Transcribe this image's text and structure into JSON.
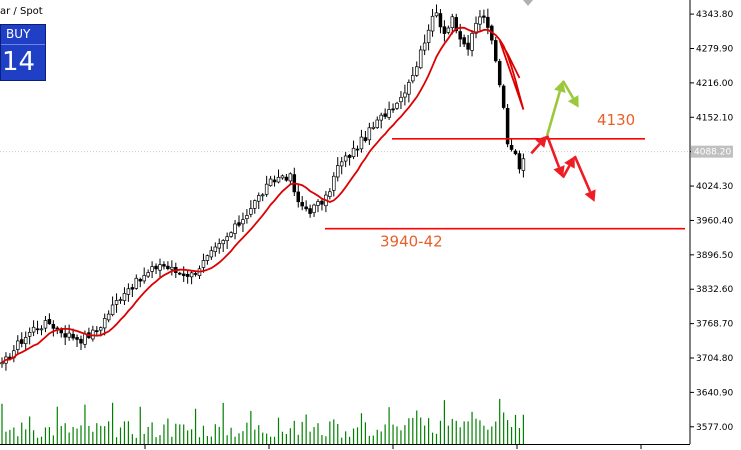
{
  "symbol_title": "ar / Spot",
  "trade_panel": {
    "buy_label": "BUY",
    "buy_price": "14"
  },
  "colors": {
    "background": "#ffffff",
    "candle": "#000000",
    "moving_average": "#dd0000",
    "levels": "#ff0000",
    "level_text": "#e8602a",
    "arrow_down": "#ee1c25",
    "arrow_up": "#9bc83a",
    "volume": "#008000",
    "grid": "#c8c8c8"
  },
  "chart_data": {
    "type": "candlestick",
    "y_axis": {
      "min": 3545,
      "max": 4370,
      "ticks": [
        "4343.80",
        "4279.90",
        "4216.00",
        "4152.10",
        "4088.20",
        "4024.30",
        "3960.40",
        "3896.50",
        "3832.60",
        "3768.70",
        "3704.80",
        "3640.90",
        "3577.00"
      ],
      "current_price_label": "4088.20"
    },
    "level_lines": [
      {
        "label": "4130",
        "price": 4112
      },
      {
        "label": "3940-42",
        "price": 3945
      }
    ],
    "anchors": [
      {
        "i": 0,
        "p": 3690
      },
      {
        "i": 4,
        "p": 3730
      },
      {
        "i": 8,
        "p": 3760
      },
      {
        "i": 12,
        "p": 3770
      },
      {
        "i": 16,
        "p": 3750
      },
      {
        "i": 20,
        "p": 3740
      },
      {
        "i": 24,
        "p": 3755
      },
      {
        "i": 28,
        "p": 3800
      },
      {
        "i": 31,
        "p": 3830
      },
      {
        "i": 35,
        "p": 3850
      },
      {
        "i": 40,
        "p": 3880
      },
      {
        "i": 44,
        "p": 3865
      },
      {
        "i": 48,
        "p": 3860
      },
      {
        "i": 52,
        "p": 3890
      },
      {
        "i": 56,
        "p": 3920
      },
      {
        "i": 60,
        "p": 3955
      },
      {
        "i": 64,
        "p": 3995
      },
      {
        "i": 68,
        "p": 4030
      },
      {
        "i": 71,
        "p": 4045
      },
      {
        "i": 73,
        "p": 4040
      },
      {
        "i": 75,
        "p": 3990
      },
      {
        "i": 78,
        "p": 3980
      },
      {
        "i": 82,
        "p": 4000
      },
      {
        "i": 85,
        "p": 4060
      },
      {
        "i": 89,
        "p": 4090
      },
      {
        "i": 93,
        "p": 4125
      },
      {
        "i": 97,
        "p": 4160
      },
      {
        "i": 101,
        "p": 4190
      },
      {
        "i": 105,
        "p": 4250
      },
      {
        "i": 108,
        "p": 4320
      },
      {
        "i": 110,
        "p": 4345
      },
      {
        "i": 112,
        "p": 4310
      },
      {
        "i": 114,
        "p": 4340
      },
      {
        "i": 116,
        "p": 4290
      },
      {
        "i": 118,
        "p": 4280
      },
      {
        "i": 120,
        "p": 4330
      },
      {
        "i": 122,
        "p": 4335
      },
      {
        "i": 124,
        "p": 4300
      },
      {
        "i": 126,
        "p": 4220
      },
      {
        "i": 128,
        "p": 4110
      },
      {
        "i": 130,
        "p": 4090
      },
      {
        "i": 131,
        "p": 4060
      },
      {
        "i": 132,
        "p": 4075
      }
    ],
    "annotations": {
      "ma_projection": [
        {
          "i": 126,
          "p": 4295
        },
        {
          "i": 128,
          "p": 4270
        },
        {
          "i": 131,
          "p": 4225
        }
      ],
      "arrows_down": [
        [
          {
            "i": 134,
            "p": 4085
          },
          {
            "i": 138,
            "p": 4118
          }
        ],
        [
          {
            "i": 138,
            "p": 4118
          },
          {
            "i": 142,
            "p": 4040
          }
        ],
        [
          {
            "i": 142,
            "p": 4040
          },
          {
            "i": 145,
            "p": 4080
          }
        ],
        [
          {
            "i": 145,
            "p": 4080
          },
          {
            "i": 150,
            "p": 3995
          }
        ]
      ],
      "arrows_up": [
        [
          {
            "i": 138,
            "p": 4118
          },
          {
            "i": 142,
            "p": 4220
          }
        ],
        [
          {
            "i": 142,
            "p": 4220
          },
          {
            "i": 146,
            "p": 4170
          }
        ]
      ]
    }
  }
}
